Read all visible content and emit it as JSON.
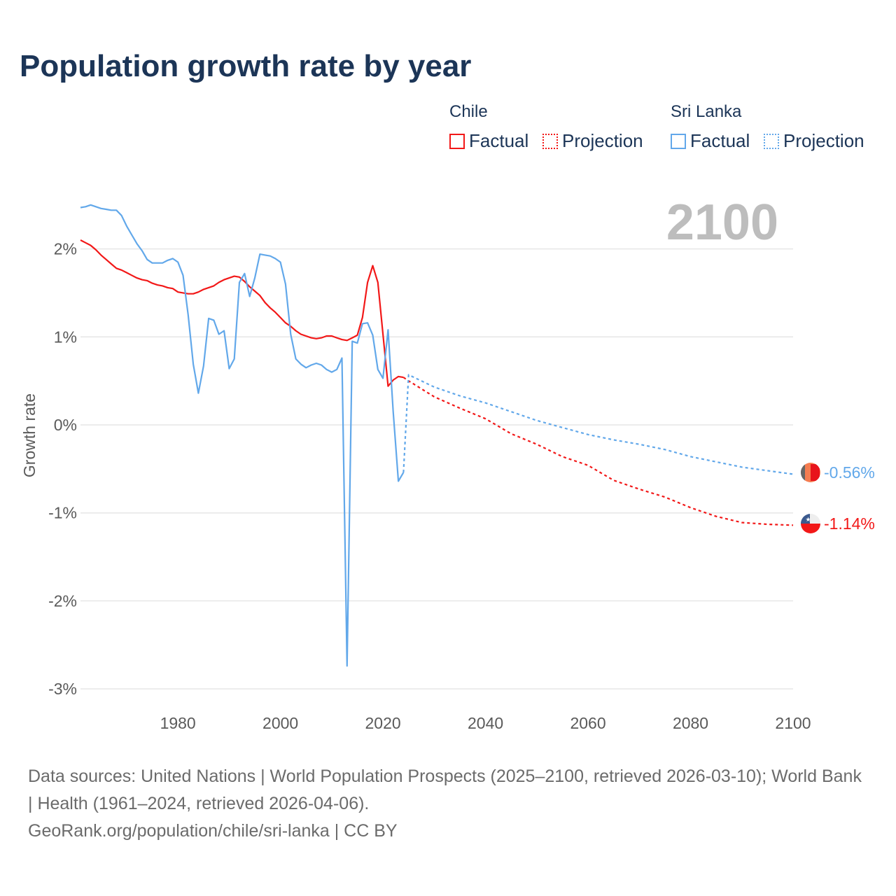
{
  "title": "Population growth rate by year",
  "legend": {
    "groups": [
      {
        "country": "Chile",
        "color": "#f21818",
        "items": [
          "Factual",
          "Projection"
        ]
      },
      {
        "country": "Sri Lanka",
        "color": "#62a8ea",
        "items": [
          "Factual",
          "Projection"
        ]
      }
    ]
  },
  "year_label": "2100",
  "end_labels": {
    "sri_lanka": "-0.56%",
    "chile": "-1.14%"
  },
  "footer": {
    "sources": "Data sources: United Nations | World Population Prospects (2025–2100, retrieved 2026-03-10); World Bank | Health (1961–2024, retrieved 2026-04-06).",
    "credit": "GeoRank.org/population/chile/sri-lanka | CC BY"
  },
  "chart_data": {
    "type": "line",
    "title": "Population growth rate by year",
    "xlabel": "",
    "ylabel": "Growth rate",
    "xlim": [
      1961,
      2100
    ],
    "ylim": [
      -3.2,
      2.6
    ],
    "xticks": [
      1980,
      2000,
      2020,
      2040,
      2060,
      2080,
      2100
    ],
    "yticks": [
      2,
      1,
      0,
      -1,
      -2,
      -3
    ],
    "ytick_labels": [
      "2%",
      "1%",
      "0%",
      "-1%",
      "-2%",
      "-3%"
    ],
    "grid": true,
    "legend_position": "top-right",
    "series": [
      {
        "name": "Chile Factual",
        "color": "#f21818",
        "dashed": false,
        "x_start": 1961,
        "values": [
          2.1,
          2.07,
          2.04,
          1.99,
          1.93,
          1.88,
          1.83,
          1.78,
          1.76,
          1.73,
          1.7,
          1.67,
          1.65,
          1.64,
          1.61,
          1.59,
          1.58,
          1.56,
          1.55,
          1.51,
          1.5,
          1.49,
          1.49,
          1.51,
          1.54,
          1.56,
          1.58,
          1.62,
          1.65,
          1.67,
          1.69,
          1.68,
          1.63,
          1.57,
          1.52,
          1.47,
          1.39,
          1.33,
          1.28,
          1.22,
          1.16,
          1.12,
          1.07,
          1.03,
          1.01,
          0.99,
          0.98,
          0.99,
          1.01,
          1.01,
          0.99,
          0.97,
          0.96,
          0.99,
          1.02,
          1.22,
          1.62,
          1.81,
          1.62,
          1.03,
          0.44,
          0.51,
          0.55,
          0.54
        ]
      },
      {
        "name": "Chile Projection",
        "color": "#f21818",
        "dashed": true,
        "x": [
          2024,
          2025,
          2030,
          2035,
          2040,
          2045,
          2050,
          2055,
          2060,
          2065,
          2070,
          2075,
          2080,
          2085,
          2090,
          2095,
          2100
        ],
        "values": [
          0.54,
          0.5,
          0.32,
          0.19,
          0.07,
          -0.1,
          -0.22,
          -0.36,
          -0.46,
          -0.63,
          -0.73,
          -0.82,
          -0.94,
          -1.04,
          -1.11,
          -1.13,
          -1.14
        ]
      },
      {
        "name": "Sri Lanka Factual",
        "color": "#62a8ea",
        "dashed": false,
        "x_start": 1961,
        "values": [
          2.47,
          2.48,
          2.5,
          2.48,
          2.46,
          2.45,
          2.44,
          2.44,
          2.38,
          2.26,
          2.16,
          2.06,
          1.98,
          1.88,
          1.84,
          1.84,
          1.84,
          1.87,
          1.89,
          1.85,
          1.7,
          1.25,
          0.69,
          0.36,
          0.67,
          1.21,
          1.19,
          1.03,
          1.07,
          0.64,
          0.75,
          1.62,
          1.72,
          1.46,
          1.67,
          1.94,
          1.93,
          1.92,
          1.89,
          1.85,
          1.6,
          1.03,
          0.75,
          0.69,
          0.65,
          0.68,
          0.7,
          0.68,
          0.63,
          0.6,
          0.63,
          0.76,
          -2.74,
          0.95,
          0.93,
          1.15,
          1.16,
          1.02,
          0.63,
          0.53,
          1.08,
          0.15,
          -0.64,
          -0.54
        ]
      },
      {
        "name": "Sri Lanka Projection",
        "color": "#62a8ea",
        "dashed": true,
        "x": [
          2024,
          2025,
          2030,
          2035,
          2040,
          2045,
          2050,
          2055,
          2060,
          2065,
          2070,
          2075,
          2080,
          2085,
          2090,
          2095,
          2100
        ],
        "values": [
          -0.54,
          0.57,
          0.43,
          0.33,
          0.25,
          0.15,
          0.05,
          -0.03,
          -0.11,
          -0.17,
          -0.22,
          -0.28,
          -0.36,
          -0.42,
          -0.48,
          -0.52,
          -0.56
        ]
      }
    ]
  }
}
